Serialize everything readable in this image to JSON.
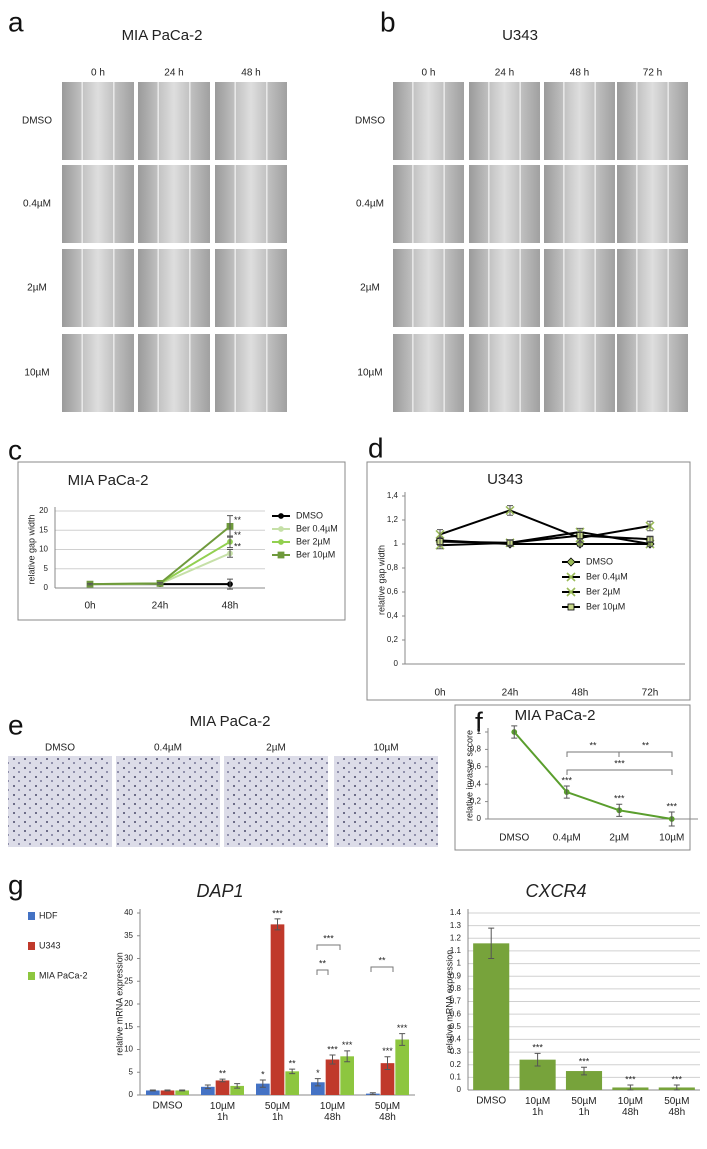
{
  "panel_labels": [
    "a",
    "b",
    "c",
    "d",
    "e",
    "f",
    "g"
  ],
  "image_panels": [
    {
      "title": "MIA PaCa-2",
      "columns": [
        "0 h",
        "24 h",
        "48 h"
      ],
      "rows": [
        "DMSO",
        "0.4µM",
        "2µM",
        "10µM"
      ]
    },
    {
      "title": "U343",
      "columns": [
        "0 h",
        "24 h",
        "48 h",
        "72 h"
      ],
      "rows": [
        "DMSO",
        "0.4µM",
        "2µM",
        "10µM"
      ]
    },
    {
      "title": "MIA PaCa-2",
      "columns": [
        "DMSO",
        "0.4µM",
        "2µM",
        "10µM"
      ]
    }
  ],
  "chart_data": [
    {
      "type": "line",
      "title": "MIA PaCa-2",
      "y_label": "relative gap width",
      "categories": [
        "0h",
        "24h",
        "48h"
      ],
      "ylim": [
        0,
        20
      ],
      "yticks": [
        0,
        5,
        10,
        15,
        20
      ],
      "grid": true,
      "legend": "right",
      "series": [
        {
          "name": "DMSO",
          "color": "#000000",
          "values": [
            1,
            1,
            1
          ],
          "errors": [
            0.2,
            0.2,
            1.3
          ]
        },
        {
          "name": "Ber 0.4µM",
          "color": "#c6e0a8",
          "values": [
            1,
            1.1,
            9
          ],
          "errors": [
            0.2,
            0.2,
            1
          ],
          "annotations": [
            null,
            null,
            "**"
          ]
        },
        {
          "name": "Ber 2µM",
          "color": "#92d050",
          "values": [
            1,
            1.2,
            12
          ],
          "errors": [
            0.2,
            0.2,
            1.5
          ],
          "annotations": [
            null,
            null,
            "**"
          ]
        },
        {
          "name": "Ber 10µM",
          "color": "#6f9a3c",
          "marker": "square",
          "values": [
            1,
            1.2,
            16
          ],
          "errors": [
            0.2,
            0.2,
            2.8
          ],
          "annotations": [
            null,
            null,
            "**"
          ]
        }
      ]
    },
    {
      "type": "line",
      "title": "U343",
      "y_label": "relative gap width",
      "categories": [
        "0h",
        "24h",
        "48h",
        "72h"
      ],
      "ylim": [
        0,
        1.4
      ],
      "yticks": [
        0,
        {
          "value": 0.2,
          "label": "0,2"
        },
        {
          "value": 0.4,
          "label": "0,4"
        },
        {
          "value": 0.6,
          "label": "0,6"
        },
        {
          "value": 0.8,
          "label": "0,8"
        },
        1,
        {
          "value": 1.2,
          "label": "1,2"
        },
        {
          "value": 1.4,
          "label": "1,4"
        }
      ],
      "grid": false,
      "legend": "right",
      "series": [
        {
          "name": "DMSO",
          "color": "#000000",
          "marker": "diamond",
          "marker_color": "#9bbb59",
          "values": [
            1.03,
            1,
            1,
            1
          ],
          "errors": [
            0.03,
            0.02,
            0.02,
            0.02
          ]
        },
        {
          "name": "Ber 0.4µM",
          "color": "#000000",
          "marker": "x",
          "marker_color": "#9bbb59",
          "values": [
            1.08,
            1.28,
            1.05,
            1.15
          ],
          "errors": [
            0.04,
            0.04,
            0.04,
            0.04
          ]
        },
        {
          "name": "Ber 2µM",
          "color": "#000000",
          "marker": "x",
          "marker_color": "#9bbb59",
          "values": [
            0.99,
            1.01,
            1.1,
            1
          ],
          "errors": [
            0.03,
            0.02,
            0.03,
            0.02
          ]
        },
        {
          "name": "Ber 10µM",
          "color": "#000000",
          "marker": "square",
          "marker_color": "#c9d98a",
          "values": [
            1.02,
            1.01,
            1.07,
            1.04
          ],
          "errors": [
            0.03,
            0.02,
            0.03,
            0.02
          ]
        }
      ]
    },
    {
      "type": "line",
      "title": "MIA PaCa-2",
      "y_label": "relative invasve sccore",
      "categories": [
        "DMSO",
        "0.4µM",
        "2µM",
        "10µM"
      ],
      "ylim": [
        0,
        1
      ],
      "yticks": [
        0,
        {
          "value": 0.2,
          "label": "0,2"
        },
        {
          "value": 0.4,
          "label": "0,4"
        },
        {
          "value": 0.6,
          "label": "0,6"
        },
        {
          "value": 0.8,
          "label": "0,8"
        },
        1
      ],
      "grid": false,
      "series": [
        {
          "color": "#5a9e2d",
          "values": [
            1,
            0.31,
            0.1,
            0
          ],
          "errors": [
            0.07,
            0.07,
            0.07,
            0.08
          ],
          "annotations": [
            null,
            "***",
            "***",
            "***"
          ]
        }
      ],
      "bracket_labels": [
        "**",
        "**",
        "***"
      ]
    },
    {
      "type": "bar",
      "title": "DAP1",
      "y_label": "relative mRNA expression",
      "categories": [
        "DMSO",
        "10µM 1h",
        "50µM 1h",
        "10µM 48h",
        "50µM 48h"
      ],
      "ylim": [
        0,
        40
      ],
      "yticks": [
        0,
        5,
        10,
        15,
        20,
        25,
        30,
        35,
        40
      ],
      "grid": false,
      "legend": "left",
      "series": [
        {
          "name": "HDF",
          "color": "#4472c4",
          "values": [
            1,
            1.8,
            2.5,
            2.8,
            0.3
          ],
          "errors": [
            0.1,
            0.4,
            0.8,
            0.8,
            0.2
          ],
          "annotations": [
            null,
            null,
            "*",
            "*",
            null
          ]
        },
        {
          "name": "U343",
          "color": "#c0392b",
          "values": [
            1,
            3.2,
            37.5,
            7.8,
            7
          ],
          "errors": [
            0.1,
            0.3,
            1.2,
            1,
            1.4
          ],
          "annotations": [
            null,
            "**",
            "***",
            "***",
            "***"
          ]
        },
        {
          "name": "MIA PaCa-2",
          "color": "#8dc63f",
          "values": [
            1,
            2,
            5.2,
            8.5,
            12.2
          ],
          "errors": [
            0.1,
            0.5,
            0.5,
            1.2,
            1.3
          ],
          "annotations": [
            null,
            null,
            "**",
            "***",
            "***"
          ]
        }
      ],
      "bracket_labels": [
        "***",
        "**",
        "**"
      ]
    },
    {
      "type": "bar",
      "title": "CXCR4",
      "y_label": "relative mRNA expression",
      "categories": [
        "DMSO",
        "10µM 1h",
        "50µM 1h",
        "10µM 48h",
        "50µM 48h"
      ],
      "ylim": [
        0,
        1.4
      ],
      "yticks": [
        0,
        0.1,
        0.2,
        0.3,
        0.4,
        0.5,
        0.6,
        0.7,
        0.8,
        0.9,
        1,
        1.1,
        1.2,
        1.3,
        1.4
      ],
      "grid": true,
      "series": [
        {
          "color": "#77a33b",
          "values": [
            1.16,
            0.24,
            0.15,
            0.02,
            0.02
          ],
          "errors": [
            0.12,
            0.05,
            0.03,
            0.02,
            0.02
          ],
          "annotations": [
            null,
            "***",
            "***",
            "***",
            "***"
          ]
        }
      ]
    }
  ]
}
